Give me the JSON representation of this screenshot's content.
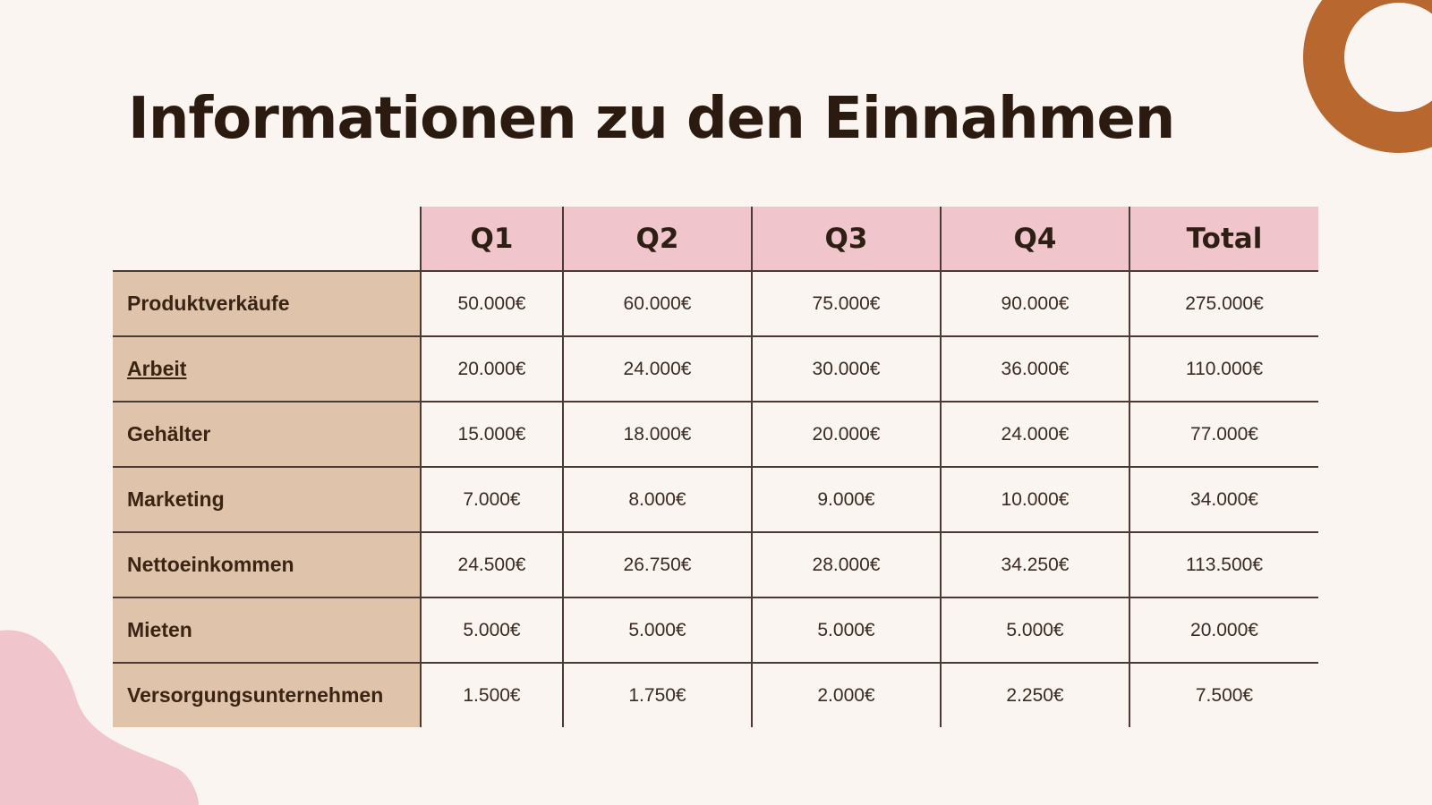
{
  "title": "Informationen zu den Einnahmen",
  "colors": {
    "background": "#faf5f0",
    "header": "#f0c6cc",
    "row_label": "#dfc3aa",
    "ring": "#b8682f",
    "blob": "#f0c6cc"
  },
  "table": {
    "headers": [
      "",
      "Q1",
      "Q2",
      "Q3",
      "Q4",
      "Total"
    ],
    "rows": [
      {
        "label": "Produktverkäufe",
        "values": [
          "50.000€",
          "60.000€",
          "75.000€",
          "90.000€",
          "275.000€"
        ]
      },
      {
        "label": "Arbeit",
        "values": [
          "20.000€",
          "24.000€",
          "30.000€",
          "36.000€",
          "110.000€"
        ]
      },
      {
        "label": "Gehälter",
        "values": [
          "15.000€",
          "18.000€",
          "20.000€",
          "24.000€",
          "77.000€"
        ]
      },
      {
        "label": "Marketing",
        "values": [
          "7.000€",
          "8.000€",
          "9.000€",
          "10.000€",
          "34.000€"
        ]
      },
      {
        "label": "Nettoeinkommen",
        "values": [
          "24.500€",
          "26.750€",
          "28.000€",
          "34.250€",
          "113.500€"
        ]
      },
      {
        "label": "Mieten",
        "values": [
          "5.000€",
          "5.000€",
          "5.000€",
          "5.000€",
          "20.000€"
        ]
      },
      {
        "label": "Versorgungsunternehmen",
        "values": [
          "1.500€",
          "1.750€",
          "2.000€",
          "2.250€",
          "7.500€"
        ]
      }
    ]
  }
}
